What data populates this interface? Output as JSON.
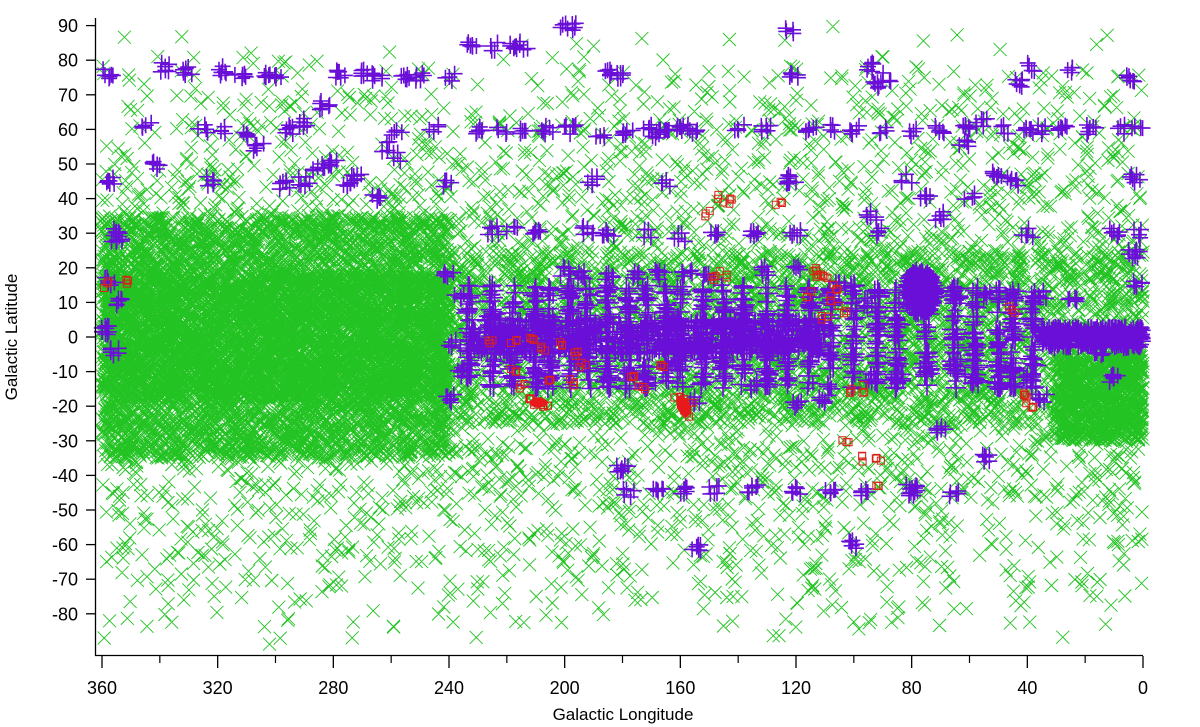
{
  "chart_data": {
    "type": "scatter",
    "title": "",
    "xlabel": "Galactic Longitude",
    "ylabel": "Galactic Latitude",
    "xlim": [
      360,
      0
    ],
    "ylim": [
      -90,
      90
    ],
    "x_reversed": true,
    "grid": false,
    "legend": null,
    "x_ticks_major": [
      360,
      320,
      280,
      240,
      200,
      160,
      120,
      80,
      40,
      0
    ],
    "x_ticks_minor": [
      340,
      300,
      260,
      220,
      180,
      140,
      100,
      60,
      20
    ],
    "y_ticks": [
      90,
      80,
      70,
      60,
      50,
      40,
      30,
      20,
      10,
      0,
      -10,
      -20,
      -30,
      -40,
      -50,
      -60,
      -70,
      -80
    ],
    "series": [
      {
        "name": "green-x-markers",
        "marker": "x",
        "color": "#22c322",
        "description": "Dense all-sky field; densest along galactic plane for longitudes 360-240 and near 0-30",
        "density_regions": [
          {
            "lon": [
              0,
              360
            ],
            "lat": [
              -90,
              90
            ],
            "count": 4200
          },
          {
            "lon": [
              240,
              360
            ],
            "lat": [
              -35,
              35
            ],
            "count": 5200
          },
          {
            "lon": [
              240,
              360
            ],
            "lat": [
              -18,
              18
            ],
            "count": 3000
          },
          {
            "lon": [
              0,
              240
            ],
            "lat": [
              -25,
              25
            ],
            "count": 2600
          },
          {
            "lon": [
              0,
              30
            ],
            "lat": [
              -30,
              -5
            ],
            "count": 900
          }
        ]
      },
      {
        "name": "purple-plus-markers",
        "marker": "+",
        "color": "#6a0fd8",
        "points": [
          [
            358,
            76,
            3
          ],
          [
            345,
            61,
            2
          ],
          [
            338,
            78,
            3
          ],
          [
            330,
            77,
            3
          ],
          [
            325,
            60,
            2
          ],
          [
            318,
            60,
            2
          ],
          [
            310,
            59,
            2
          ],
          [
            303,
            75,
            3
          ],
          [
            300,
            76,
            2
          ],
          [
            295,
            60,
            3
          ],
          [
            290,
            62,
            3
          ],
          [
            283,
            67,
            3
          ],
          [
            278,
            76,
            3
          ],
          [
            270,
            76,
            3
          ],
          [
            265,
            75,
            3
          ],
          [
            258,
            59,
            2
          ],
          [
            255,
            75,
            3
          ],
          [
            250,
            75,
            3
          ],
          [
            245,
            60,
            2
          ],
          [
            240,
            75,
            2
          ],
          [
            232,
            84,
            3
          ],
          [
            225,
            84,
            2
          ],
          [
            218,
            84,
            3
          ],
          [
            214,
            84,
            2
          ],
          [
            201,
            90,
            2
          ],
          [
            196,
            90,
            2
          ],
          [
            185,
            76,
            3
          ],
          [
            180,
            75,
            3
          ],
          [
            172,
            60,
            2
          ],
          [
            165,
            60,
            3
          ],
          [
            160,
            60,
            3
          ],
          [
            156,
            60,
            3
          ],
          [
            123,
            89,
            2
          ],
          [
            121,
            75,
            3
          ],
          [
            108,
            60,
            2
          ],
          [
            95,
            78,
            3
          ],
          [
            92,
            73,
            3
          ],
          [
            88,
            75,
            2
          ],
          [
            230,
            60,
            3
          ],
          [
            222,
            60,
            2
          ],
          [
            214,
            60,
            3
          ],
          [
            206,
            60,
            3
          ],
          [
            198,
            60,
            3
          ],
          [
            188,
            59,
            2
          ],
          [
            178,
            59,
            3
          ],
          [
            168,
            59,
            3
          ],
          [
            140,
            60,
            2
          ],
          [
            130,
            60,
            3
          ],
          [
            115,
            60,
            3
          ],
          [
            100,
            60,
            3
          ],
          [
            90,
            60,
            2
          ],
          [
            80,
            59,
            2
          ],
          [
            70,
            60,
            3
          ],
          [
            62,
            61,
            3
          ],
          [
            56,
            62,
            3
          ],
          [
            48,
            60,
            2
          ],
          [
            40,
            60,
            3
          ],
          [
            35,
            60,
            2
          ],
          [
            28,
            60,
            3
          ],
          [
            18,
            60,
            3
          ],
          [
            8,
            60,
            2
          ],
          [
            2,
            60,
            2
          ],
          [
            318,
            77,
            3
          ],
          [
            312,
            76,
            3
          ],
          [
            262,
            55,
            2
          ],
          [
            258,
            52,
            2
          ],
          [
            290,
            45,
            3
          ],
          [
            285,
            49,
            3
          ],
          [
            275,
            44,
            3
          ],
          [
            265,
            40,
            3
          ],
          [
            240,
            44,
            2
          ],
          [
            190,
            45,
            3
          ],
          [
            165,
            44,
            2
          ],
          [
            122,
            45,
            3
          ],
          [
            122,
            46,
            2
          ],
          [
            94,
            35,
            3
          ],
          [
            82,
            46,
            2
          ],
          [
            75,
            40,
            3
          ],
          [
            70,
            35,
            3
          ],
          [
            62,
            56,
            3
          ],
          [
            60,
            41,
            2
          ],
          [
            50,
            47,
            3
          ],
          [
            45,
            45,
            3
          ],
          [
            43,
            73,
            3
          ],
          [
            38,
            78,
            2
          ],
          [
            25,
            77,
            2
          ],
          [
            5,
            75,
            3
          ],
          [
            3,
            46,
            3
          ],
          [
            357,
            45,
            3
          ],
          [
            342,
            50,
            3
          ],
          [
            322,
            45,
            3
          ],
          [
            306,
            55,
            3
          ],
          [
            297,
            44,
            3
          ],
          [
            280,
            50,
            3
          ],
          [
            272,
            46,
            3
          ],
          [
            354,
            30,
            3
          ],
          [
            355,
            28,
            3
          ],
          [
            225,
            31,
            3
          ],
          [
            218,
            31,
            2
          ],
          [
            210,
            31,
            3
          ],
          [
            192,
            31,
            3
          ],
          [
            185,
            30,
            3
          ],
          [
            172,
            30,
            2
          ],
          [
            160,
            29,
            3
          ],
          [
            148,
            30,
            3
          ],
          [
            135,
            30,
            3
          ],
          [
            120,
            30,
            3
          ],
          [
            90,
            30,
            2
          ],
          [
            40,
            30,
            3
          ],
          [
            10,
            30,
            3
          ],
          [
            2,
            30,
            2
          ],
          [
            240,
            18,
            3
          ],
          [
            237,
            12,
            3
          ],
          [
            200,
            19,
            3
          ],
          [
            195,
            18,
            3
          ],
          [
            185,
            18,
            3
          ],
          [
            175,
            18,
            3
          ],
          [
            167,
            18,
            3
          ],
          [
            158,
            18,
            3
          ],
          [
            150,
            17,
            3
          ],
          [
            130,
            19,
            3
          ],
          [
            120,
            20,
            2
          ],
          [
            105,
            15,
            3
          ],
          [
            95,
            10,
            3
          ],
          [
            65,
            12,
            3
          ],
          [
            55,
            12,
            3
          ],
          [
            45,
            12,
            3
          ],
          [
            35,
            12,
            3
          ],
          [
            25,
            10,
            3
          ],
          [
            3,
            24,
            4
          ],
          [
            2,
            15,
            3
          ],
          [
            240,
            -18,
            3
          ],
          [
            236,
            -10,
            3
          ],
          [
            238,
            -2,
            3
          ],
          [
            205,
            -12,
            3
          ],
          [
            195,
            -8,
            3
          ],
          [
            185,
            -12,
            3
          ],
          [
            178,
            -10,
            3
          ],
          [
            170,
            -12,
            3
          ],
          [
            160,
            -8,
            3
          ],
          [
            155,
            -18,
            3
          ],
          [
            145,
            -8,
            3
          ],
          [
            135,
            -14,
            3
          ],
          [
            120,
            -20,
            3
          ],
          [
            110,
            -18,
            3
          ],
          [
            95,
            -12,
            3
          ],
          [
            85,
            -12,
            3
          ],
          [
            75,
            -10,
            3
          ],
          [
            65,
            -8,
            3
          ],
          [
            60,
            -12,
            3
          ],
          [
            50,
            -14,
            3
          ],
          [
            40,
            -12,
            3
          ],
          [
            35,
            -18,
            3
          ],
          [
            10,
            -12,
            4
          ],
          [
            180,
            -38,
            4
          ],
          [
            178,
            -45,
            3
          ],
          [
            168,
            -45,
            3
          ],
          [
            158,
            -44,
            3
          ],
          [
            148,
            -44,
            3
          ],
          [
            135,
            -44,
            3
          ],
          [
            120,
            -44,
            3
          ],
          [
            108,
            -44,
            3
          ],
          [
            96,
            -45,
            3
          ],
          [
            80,
            -45,
            3
          ],
          [
            65,
            -45,
            3
          ],
          [
            55,
            -35,
            3
          ],
          [
            70,
            -27,
            3
          ],
          [
            155,
            -61,
            3
          ],
          [
            100,
            -60,
            3
          ],
          [
            80,
            -44,
            3
          ],
          [
            358,
            2,
            5
          ],
          [
            356,
            -4,
            3
          ],
          [
            355,
            10,
            3
          ],
          [
            357,
            16,
            3
          ],
          [
            30,
            -2,
            3
          ],
          [
            20,
            0,
            4
          ],
          [
            15,
            -4,
            4
          ],
          [
            10,
            2,
            4
          ],
          [
            5,
            -2,
            4
          ],
          [
            2,
            -1,
            4
          ]
        ],
        "dense_bands": [
          {
            "lon": [
              110,
              233
            ],
            "lat": [
              -5,
              5
            ],
            "count": 700
          },
          {
            "lon": [
              0,
              35
            ],
            "lat": [
              -3,
              3
            ],
            "count": 350
          }
        ],
        "columns": [
          233,
          225,
          218,
          210,
          205,
          198,
          192,
          185,
          178,
          172,
          165,
          160,
          152,
          145,
          138,
          130,
          123,
          115,
          108,
          100,
          92,
          85,
          75,
          65,
          58,
          50,
          45,
          38
        ],
        "blob": {
          "lon": 77,
          "lat": 13,
          "radius_deg": 7
        }
      },
      {
        "name": "red-square-markers",
        "marker": "square",
        "color": "#d8221a",
        "points": [
          [
            352,
            16
          ],
          [
            358,
            15
          ],
          [
            225,
            -1
          ],
          [
            218,
            -2
          ],
          [
            212,
            -1
          ],
          [
            207,
            -3
          ],
          [
            202,
            -2
          ],
          [
            196,
            -5
          ],
          [
            194,
            -8
          ],
          [
            205,
            -12
          ],
          [
            218,
            -9
          ],
          [
            215,
            -14
          ],
          [
            210,
            -19
          ],
          [
            207,
            -20
          ],
          [
            212,
            -18
          ],
          [
            197,
            -13
          ],
          [
            177,
            -12
          ],
          [
            173,
            -14
          ],
          [
            166,
            -8
          ],
          [
            160,
            -19
          ],
          [
            159,
            -21
          ],
          [
            158,
            -22
          ],
          [
            161,
            -18
          ],
          [
            157,
            -20
          ],
          [
            150,
            36
          ],
          [
            146,
            40
          ],
          [
            142,
            39
          ],
          [
            126,
            38
          ],
          [
            148,
            17
          ],
          [
            145,
            18
          ],
          [
            114,
            20
          ],
          [
            110,
            17
          ],
          [
            112,
            17
          ],
          [
            106,
            14
          ],
          [
            108,
            11
          ],
          [
            110,
            6
          ],
          [
            104,
            8
          ],
          [
            115,
            12
          ],
          [
            103,
            -31
          ],
          [
            98,
            -35
          ],
          [
            92,
            -35
          ],
          [
            91,
            -43
          ],
          [
            100,
            -15
          ],
          [
            96,
            -15
          ],
          [
            45,
            8
          ],
          [
            40,
            -18
          ],
          [
            38,
            -20
          ],
          [
            42,
            -16
          ]
        ]
      }
    ]
  }
}
